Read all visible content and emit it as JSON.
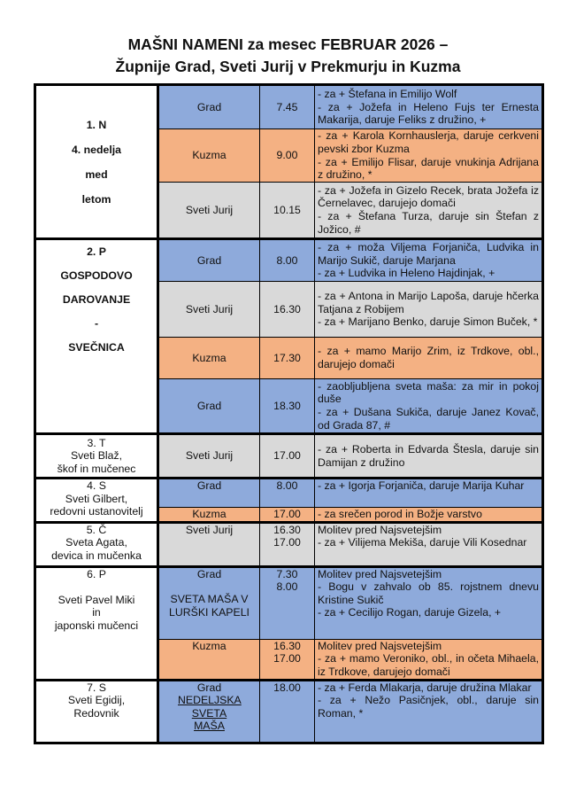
{
  "title": {
    "line1": "MAŠNI NAMENI za mesec FEBRUAR 2026 –",
    "line2": "Župnije Grad, Sveti Jurij v Prekmurju in Kuzma"
  },
  "colors": {
    "Grad": "#8eaadb",
    "Kuzma": "#f4b183",
    "Sveti Jurij": "#d9d9d9"
  },
  "days": [
    {
      "lines": [
        "1. N",
        "4. nedelja",
        "med",
        "letom"
      ],
      "bold": true,
      "masses": [
        {
          "place": "Grad",
          "time": [
            "7.45"
          ],
          "text": [
            "- za + Štefana in Emilijo Wolf",
            "- za + Jožefa in Heleno Fujs ter Ernesta Makarija, daruje Feliks z družino, +"
          ]
        },
        {
          "place": "Kuzma",
          "time": [
            "9.00"
          ],
          "text": [
            "- za + Karola Kornhauslerja, daruje cerkveni pevski zbor Kuzma",
            "- za + Emilijo Flisar, daruje vnukinja Adrijana z družino, *"
          ]
        },
        {
          "place": "Sveti Jurij",
          "time": [
            "10.15"
          ],
          "text": [
            "- za + Jožefa in Gizelo Recek, brata Jožefa iz Černelavec, darujejo domači",
            "- za + Štefana Turza, daruje sin Štefan z Jožico, #"
          ]
        }
      ]
    },
    {
      "lines": [
        "2. P",
        "GOSPODOVO",
        "DAROVANJE",
        "-",
        "SVEČNICA"
      ],
      "bold": true,
      "masses": [
        {
          "place": "Grad",
          "time": [
            "8.00"
          ],
          "text": [
            "- za + moža Viljema Forjaniča, Ludvika in Marijo Sukič, daruje Marjana",
            "- za + Ludvika in Heleno Hajdinjak, +"
          ]
        },
        {
          "place": "Sveti Jurij",
          "time": [
            "16.30"
          ],
          "text": [
            "- za + Antona in Marijo Lapoša, daruje hčerka Tatjana z Robijem",
            "- za + Marijano Benko, daruje Simon Buček, *"
          ]
        },
        {
          "place": "Kuzma",
          "time": [
            "17.30"
          ],
          "text": [
            "- za + mamo Marijo Zrim, iz Trdkove, obl., darujejo domači"
          ]
        },
        {
          "place": "Grad",
          "time": [
            "18.30"
          ],
          "text": [
            "- zaobljubljena sveta maša: za mir in pokoj duše",
            "- za + Dušana Sukiča, daruje Janez Kovač, od Grada 87, #"
          ]
        }
      ]
    },
    {
      "lines": [
        "3. T",
        "Sveti Blaž,",
        "škof in mučenec"
      ],
      "bold": false,
      "masses": [
        {
          "place": "Sveti Jurij",
          "time": [
            "17.00"
          ],
          "text": [
            "- za + Roberta in Edvarda Štesla, daruje sin Damijan z družino"
          ]
        }
      ]
    },
    {
      "lines": [
        "4. S",
        "Sveti Gilbert,",
        "redovni ustanovitelj"
      ],
      "bold": false,
      "masses": [
        {
          "place": "Grad",
          "time": [
            "8.00"
          ],
          "text": [
            "- za + Igorja Forjaniča, daruje Marija Kuhar"
          ]
        },
        {
          "place": "Kuzma",
          "time": [
            "17.00"
          ],
          "text": [
            "- za srečen porod in Božje varstvo"
          ]
        }
      ]
    },
    {
      "lines": [
        "5. Č",
        "Sveta Agata,",
        "devica in mučenka"
      ],
      "bold": false,
      "masses": [
        {
          "place": "Sveti Jurij",
          "time": [
            "16.30",
            "17.00"
          ],
          "text": [
            "Molitev pred Najsvetejšim",
            "- za + Vilijema Mekiša, daruje Vili Kosednar"
          ]
        }
      ]
    },
    {
      "lines": [
        "6. P",
        "",
        "Sveti Pavel Miki",
        "in",
        "japonski mučenci"
      ],
      "bold": false,
      "masses": [
        {
          "place": "Grad",
          "note": "SVETA MAŠA V LURŠKI KAPELI",
          "time": [
            "7.30",
            "8.00"
          ],
          "text": [
            "Molitev pred Najsvetejšim",
            "- Bogu v zahvalo ob 85. rojstnem dnevu Kristine Sukič",
            "- za + Cecilijo Rogan, daruje Gizela, +"
          ]
        },
        {
          "place": "Kuzma",
          "time": [
            "16.30",
            "17.00"
          ],
          "text": [
            "Molitev pred Najsvetejšim",
            "- za + mamo Veroniko, obl., in očeta Mihaela, iz Trdkove, darujejo domači"
          ]
        }
      ]
    },
    {
      "lines": [
        "7. S",
        "Sveti Egidij,",
        "Redovnik"
      ],
      "bold": false,
      "masses": [
        {
          "place": "Grad",
          "note_underlined": "NEDELJSKA SVETA MAŠA",
          "time": [
            "18.00"
          ],
          "text": [
            "- za + Ferda Mlakarja, daruje družina Mlakar",
            "- za + Nežo Pasičnjek, obl., daruje sin Roman, *"
          ]
        }
      ]
    }
  ]
}
